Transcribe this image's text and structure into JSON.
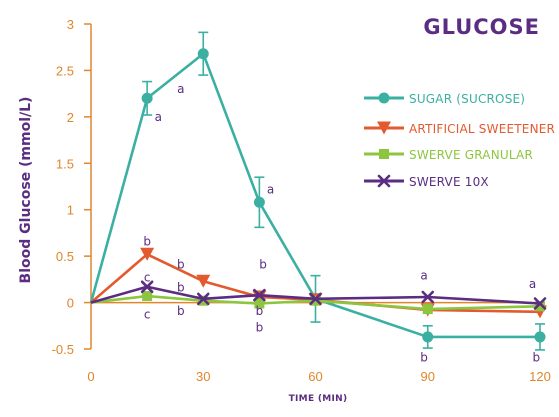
{
  "chart_data": {
    "type": "line",
    "title": "GLUCOSE",
    "xlabel": "TIME (MIN)",
    "ylabel": "Blood Glucose (mmol/L)",
    "x_ticks": [
      "0",
      "30",
      "60",
      "90",
      "120"
    ],
    "y_ticks": [
      "3",
      "2.5",
      "2",
      "1.5",
      "1",
      "0.5",
      "0",
      "-0.5"
    ],
    "xlim": [
      0,
      120
    ],
    "ylim": [
      -0.5,
      3
    ],
    "legend_position": "right",
    "grid": false,
    "colors": {
      "axis": "#e0862b",
      "text": "#5a2d82"
    },
    "series": [
      {
        "name": "SUGAR (SUCROSE)",
        "color": "#3bb0a2",
        "marker": "circle",
        "x": [
          0,
          15,
          30,
          45,
          60,
          90,
          120
        ],
        "y": [
          0,
          2.2,
          2.68,
          1.08,
          0.04,
          -0.37,
          -0.37
        ],
        "err": [
          0,
          0.18,
          0.23,
          0.27,
          0.25,
          0.12,
          0.14
        ]
      },
      {
        "name": "ARTIFICIAL SWEETENER",
        "color": "#e35a2e",
        "marker": "triangle-down",
        "x": [
          0,
          15,
          30,
          45,
          60,
          90,
          120
        ],
        "y": [
          0,
          0.52,
          0.23,
          0.06,
          0.03,
          -0.08,
          -0.1
        ]
      },
      {
        "name": "SWERVE GRANULAR",
        "color": "#8cc63f",
        "marker": "square",
        "x": [
          0,
          15,
          30,
          45,
          60,
          90,
          120
        ],
        "y": [
          0,
          0.07,
          0.02,
          -0.01,
          0.02,
          -0.07,
          -0.04
        ]
      },
      {
        "name": "SWERVE 10X",
        "color": "#5a2d82",
        "marker": "x",
        "x": [
          0,
          15,
          30,
          45,
          60,
          90,
          120
        ],
        "y": [
          0,
          0.17,
          0.04,
          0.08,
          0.04,
          0.06,
          -0.01
        ]
      }
    ],
    "annotations": [
      {
        "text": "a",
        "x": 18,
        "y": 2.0
      },
      {
        "text": "a",
        "x": 24,
        "y": 2.3
      },
      {
        "text": "a",
        "x": 48,
        "y": 1.22
      },
      {
        "text": "a",
        "x": 89,
        "y": 0.29
      },
      {
        "text": "a",
        "x": 118,
        "y": 0.2
      },
      {
        "text": "b",
        "x": 15,
        "y": 0.66
      },
      {
        "text": "b",
        "x": 24,
        "y": 0.41
      },
      {
        "text": "b",
        "x": 46,
        "y": 0.41
      },
      {
        "text": "b",
        "x": 24,
        "y": 0.16
      },
      {
        "text": "b",
        "x": 24,
        "y": -0.09
      },
      {
        "text": "b",
        "x": 45,
        "y": -0.09
      },
      {
        "text": "b",
        "x": 45,
        "y": -0.27
      },
      {
        "text": "b",
        "x": 89,
        "y": -0.59
      },
      {
        "text": "b",
        "x": 119,
        "y": -0.59
      },
      {
        "text": "c",
        "x": 15,
        "y": 0.27
      },
      {
        "text": "c",
        "x": 15,
        "y": -0.13
      }
    ]
  }
}
